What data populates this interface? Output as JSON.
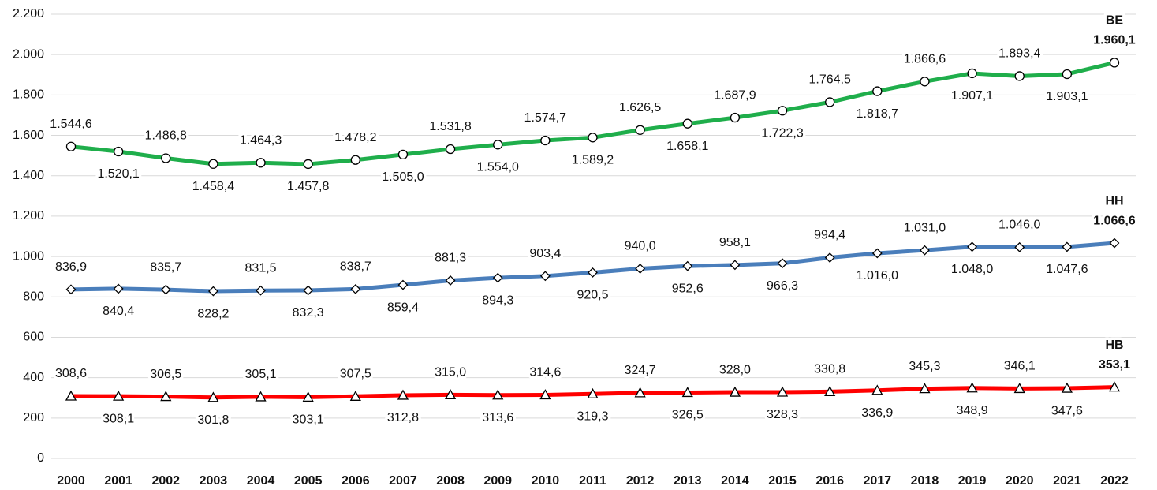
{
  "chart_data": {
    "type": "line",
    "categories": [
      "2000",
      "2001",
      "2002",
      "2003",
      "2004",
      "2005",
      "2006",
      "2007",
      "2008",
      "2009",
      "2010",
      "2011",
      "2012",
      "2013",
      "2014",
      "2015",
      "2016",
      "2017",
      "2018",
      "2019",
      "2020",
      "2021",
      "2022"
    ],
    "ylim": [
      0,
      2200
    ],
    "yticks": [
      0,
      200,
      400,
      600,
      800,
      {
        "value": 1000,
        "label": "1.000"
      },
      {
        "value": 1200,
        "label": "1.200"
      },
      {
        "value": 1400,
        "label": "1.400"
      },
      {
        "value": 1600,
        "label": "1.600"
      },
      {
        "value": 1800,
        "label": "1.800"
      },
      {
        "value": 2000,
        "label": "2.000"
      },
      {
        "value": 2200,
        "label": "2.200"
      }
    ],
    "grid": true,
    "series": [
      {
        "name": "BE",
        "color": "#1fae4b",
        "marker": "circle",
        "values": [
          1544.6,
          1520.1,
          1486.8,
          1458.4,
          1464.3,
          1457.8,
          1478.2,
          1505.0,
          1531.8,
          1554.0,
          1574.7,
          1589.2,
          1626.5,
          1658.1,
          1687.9,
          1722.3,
          1764.5,
          1818.7,
          1866.6,
          1907.1,
          1893.4,
          1903.1,
          1960.1
        ],
        "value_labels": [
          "1.544,6",
          "1.520,1",
          "1.486,8",
          "1.458,4",
          "1.464,3",
          "1.457,8",
          "1.478,2",
          "1.505,0",
          "1.531,8",
          "1.554,0",
          "1.574,7",
          "1.589,2",
          "1.626,5",
          "1.658,1",
          "1.687,9",
          "1.722,3",
          "1.764,5",
          "1.818,7",
          "1.866,6",
          "1.907,1",
          "1.893,4",
          "1.903,1",
          "1.960,1"
        ]
      },
      {
        "name": "HH",
        "color": "#4a7ebb",
        "marker": "diamond",
        "values": [
          836.9,
          840.4,
          835.7,
          828.2,
          831.5,
          832.3,
          838.7,
          859.4,
          881.3,
          894.3,
          903.4,
          920.5,
          940.0,
          952.6,
          958.1,
          966.3,
          994.4,
          1016.0,
          1031.0,
          1048.0,
          1046.0,
          1047.6,
          1066.6
        ],
        "value_labels": [
          "836,9",
          "840,4",
          "835,7",
          "828,2",
          "831,5",
          "832,3",
          "838,7",
          "859,4",
          "881,3",
          "894,3",
          "903,4",
          "920,5",
          "940,0",
          "952,6",
          "958,1",
          "966,3",
          "994,4",
          "1.016,0",
          "1.031,0",
          "1.048,0",
          "1.046,0",
          "1.047,6",
          "1.066,6"
        ]
      },
      {
        "name": "HB",
        "color": "#ff0000",
        "marker": "triangle",
        "values": [
          308.6,
          308.1,
          306.5,
          301.8,
          305.1,
          303.1,
          307.5,
          312.8,
          315.0,
          313.6,
          314.6,
          319.3,
          324.7,
          326.5,
          328.0,
          328.3,
          330.8,
          336.9,
          345.3,
          348.9,
          346.1,
          347.6,
          353.1
        ],
        "value_labels": [
          "308,6",
          "308,1",
          "306,5",
          "301,8",
          "305,1",
          "303,1",
          "307,5",
          "312,8",
          "315,0",
          "313,6",
          "314,6",
          "319,3",
          "324,7",
          "326,5",
          "328,0",
          "328,3",
          "330,8",
          "336,9",
          "345,3",
          "348,9",
          "346,1",
          "347,6",
          "353,1"
        ]
      }
    ]
  }
}
